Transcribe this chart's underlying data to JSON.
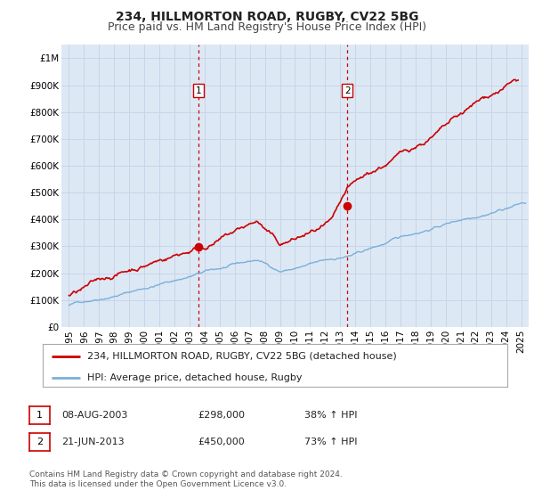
{
  "title": "234, HILLMORTON ROAD, RUGBY, CV22 5BG",
  "subtitle": "Price paid vs. HM Land Registry's House Price Index (HPI)",
  "xlim": [
    1994.5,
    2025.5
  ],
  "ylim": [
    0,
    1050000
  ],
  "yticks": [
    0,
    100000,
    200000,
    300000,
    400000,
    500000,
    600000,
    700000,
    800000,
    900000,
    1000000
  ],
  "ytick_labels": [
    "£0",
    "£100K",
    "£200K",
    "£300K",
    "£400K",
    "£500K",
    "£600K",
    "£700K",
    "£800K",
    "£900K",
    "£1M"
  ],
  "xticks": [
    1995,
    1996,
    1997,
    1998,
    1999,
    2000,
    2001,
    2002,
    2003,
    2004,
    2005,
    2006,
    2007,
    2008,
    2009,
    2010,
    2011,
    2012,
    2013,
    2014,
    2015,
    2016,
    2017,
    2018,
    2019,
    2020,
    2021,
    2022,
    2023,
    2024,
    2025
  ],
  "background_color": "#ffffff",
  "plot_bg_color": "#dde8f5",
  "grid_color": "#c8d4e8",
  "red_line_color": "#cc0000",
  "blue_line_color": "#7ab0d8",
  "vline_color": "#cc0000",
  "marker_color": "#cc0000",
  "sale1_x": 2003.6,
  "sale1_y": 298000,
  "sale2_x": 2013.47,
  "sale2_y": 450000,
  "legend1_label": "234, HILLMORTON ROAD, RUGBY, CV22 5BG (detached house)",
  "legend2_label": "HPI: Average price, detached house, Rugby",
  "annot1_num": "1",
  "annot2_num": "2",
  "table_row1": [
    "1",
    "08-AUG-2003",
    "£298,000",
    "38% ↑ HPI"
  ],
  "table_row2": [
    "2",
    "21-JUN-2013",
    "£450,000",
    "73% ↑ HPI"
  ],
  "footer": "Contains HM Land Registry data © Crown copyright and database right 2024.\nThis data is licensed under the Open Government Licence v3.0.",
  "title_fontsize": 10,
  "subtitle_fontsize": 9,
  "tick_fontsize": 7.5,
  "legend_fontsize": 8,
  "table_fontsize": 8,
  "footer_fontsize": 6.5
}
